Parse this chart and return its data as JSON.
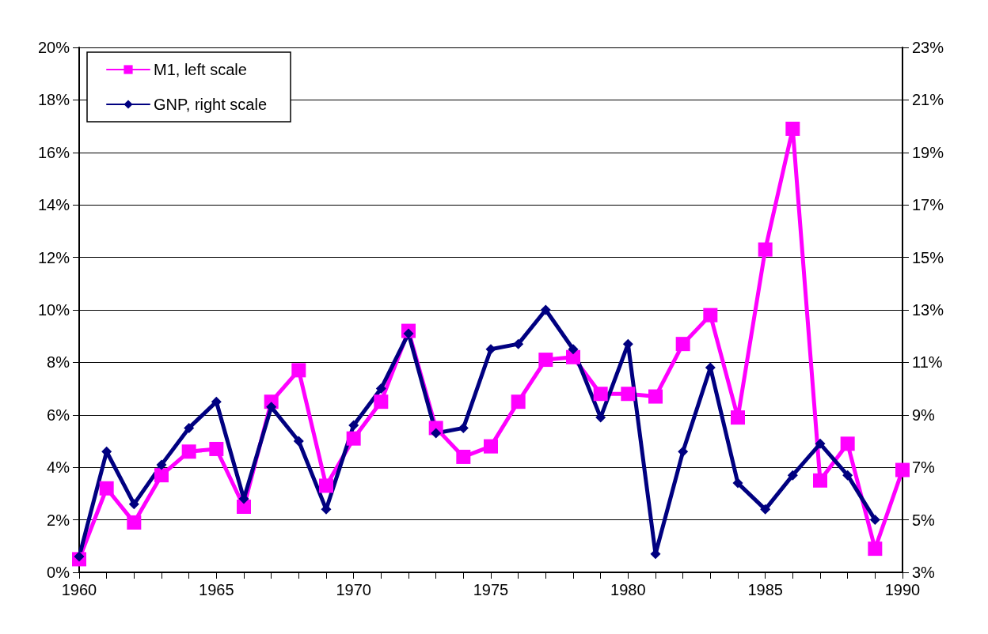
{
  "chart_data": {
    "type": "line",
    "x": [
      1960,
      1961,
      1962,
      1963,
      1964,
      1965,
      1966,
      1967,
      1968,
      1969,
      1970,
      1971,
      1972,
      1973,
      1974,
      1975,
      1976,
      1977,
      1978,
      1979,
      1980,
      1981,
      1982,
      1983,
      1984,
      1985,
      1986,
      1987,
      1988,
      1989,
      1990
    ],
    "series": [
      {
        "name": "M1, left scale",
        "color": "#ff00ff",
        "marker": "square",
        "values": [
          0.5,
          3.2,
          1.9,
          3.7,
          4.6,
          4.7,
          2.5,
          6.5,
          7.7,
          3.3,
          5.1,
          6.5,
          9.2,
          5.5,
          4.4,
          4.8,
          6.5,
          8.1,
          8.2,
          6.8,
          6.8,
          6.7,
          8.7,
          9.8,
          5.9,
          12.3,
          16.9,
          3.5,
          4.9,
          0.9,
          3.9
        ]
      },
      {
        "name": "GNP, right scale",
        "color": "#000080",
        "marker": "diamond",
        "axis": "y2",
        "values": [
          3.6,
          7.6,
          5.6,
          7.1,
          8.5,
          9.5,
          5.8,
          9.3,
          8.0,
          5.4,
          8.6,
          10.0,
          12.1,
          8.3,
          8.5,
          11.5,
          11.7,
          13.0,
          11.5,
          8.9,
          11.7,
          3.7,
          7.6,
          10.8,
          6.4,
          5.4,
          6.7,
          7.9,
          6.7,
          5.0,
          null
        ]
      }
    ],
    "xlim": [
      1960,
      1990
    ],
    "xticks": [
      1960,
      {
        "value": 1961,
        "label": null
      },
      {
        "value": 1962,
        "label": null
      },
      {
        "value": 1963,
        "label": null
      },
      {
        "value": 1964,
        "label": null
      },
      1965,
      {
        "value": 1966,
        "label": null
      },
      {
        "value": 1967,
        "label": null
      },
      {
        "value": 1968,
        "label": null
      },
      {
        "value": 1969,
        "label": null
      },
      1970,
      {
        "value": 1971,
        "label": null
      },
      {
        "value": 1972,
        "label": null
      },
      {
        "value": 1973,
        "label": null
      },
      {
        "value": 1974,
        "label": null
      },
      1975,
      {
        "value": 1976,
        "label": null
      },
      {
        "value": 1977,
        "label": null
      },
      {
        "value": 1978,
        "label": null
      },
      {
        "value": 1979,
        "label": null
      },
      1980,
      {
        "value": 1981,
        "label": null
      },
      {
        "value": 1982,
        "label": null
      },
      {
        "value": 1983,
        "label": null
      },
      {
        "value": 1984,
        "label": null
      },
      1985,
      {
        "value": 1986,
        "label": null
      },
      {
        "value": 1987,
        "label": null
      },
      {
        "value": 1988,
        "label": null
      },
      {
        "value": 1989,
        "label": null
      },
      1990
    ],
    "ylim": [
      0,
      20
    ],
    "yticks": [
      {
        "value": 0,
        "label": "0%"
      },
      {
        "value": 2,
        "label": "2%"
      },
      {
        "value": 4,
        "label": "4%"
      },
      {
        "value": 6,
        "label": "6%"
      },
      {
        "value": 8,
        "label": "8%"
      },
      {
        "value": 10,
        "label": "10%"
      },
      {
        "value": 12,
        "label": "12%"
      },
      {
        "value": 14,
        "label": "14%"
      },
      {
        "value": 16,
        "label": "16%"
      },
      {
        "value": 18,
        "label": "18%"
      },
      {
        "value": 20,
        "label": "20%"
      }
    ],
    "y2lim": [
      3,
      23
    ],
    "y2ticks": [
      {
        "value": 3,
        "label": "3%"
      },
      {
        "value": 5,
        "label": "5%"
      },
      {
        "value": 7,
        "label": "7%"
      },
      {
        "value": 9,
        "label": "9%"
      },
      {
        "value": 11,
        "label": "11%"
      },
      {
        "value": 13,
        "label": "13%"
      },
      {
        "value": 15,
        "label": "15%"
      },
      {
        "value": 17,
        "label": "17%"
      },
      {
        "value": 19,
        "label": "19%"
      },
      {
        "value": 21,
        "label": "21%"
      },
      {
        "value": 23,
        "label": "23%"
      }
    ],
    "grid": "y",
    "legend": "top left",
    "line_style": "solid"
  }
}
